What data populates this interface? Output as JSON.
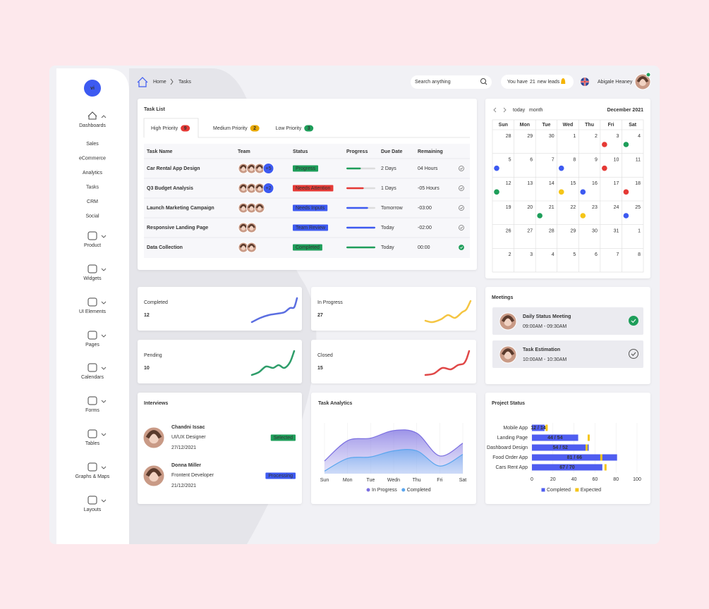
{
  "sidebar": {
    "logo": "vi",
    "menu": [
      {
        "label": "Dashboards",
        "items": [
          {
            "label": "Sales"
          },
          {
            "label": "eCommerce"
          },
          {
            "label": "Analytics"
          },
          {
            "label": "Tasks",
            "active": true
          },
          {
            "label": "CRM"
          },
          {
            "label": "Social"
          }
        ]
      },
      {
        "label": "Product"
      },
      {
        "label": "Widgets"
      },
      {
        "label": "UI Elements"
      },
      {
        "label": "Pages"
      },
      {
        "label": "Calendars"
      },
      {
        "label": "Forms"
      },
      {
        "label": "Tables"
      },
      {
        "label": "Graphs & Maps"
      },
      {
        "label": "Layouts"
      }
    ]
  },
  "header": {
    "breadcrumb": [
      "Home",
      "Tasks"
    ],
    "search_placeholder": "Search anything",
    "leads": {
      "prefix": "You have",
      "count": 21,
      "suffix": "new leads"
    },
    "user_name": "Abigale Heaney"
  },
  "task_list": {
    "title": "Task List",
    "tabs": [
      {
        "label": "High Priority",
        "count": 9,
        "color": "#e53935",
        "active": true
      },
      {
        "label": "Medium Priority",
        "count": 2,
        "color": "#e8a800"
      },
      {
        "label": "Low Priority",
        "count": 3,
        "color": "#1e9e5a"
      }
    ],
    "columns": [
      "Task Name",
      "Team",
      "Status",
      "Progress",
      "Due Date",
      "Remaining"
    ],
    "progress_scale": [
      0,
      100
    ],
    "rows": [
      {
        "name": "Car Rental App Design",
        "team": {
          "avatars": 3,
          "more": "+5"
        },
        "status": "Progress",
        "status_color": "#1e9e5a",
        "progress": 50,
        "progress_color": "#1e9e5a",
        "due": "2 Days",
        "remaining": "04 Hours",
        "overdue": true,
        "done": false
      },
      {
        "name": "Q3 Budget Analysis",
        "team": {
          "avatars": 3,
          "more": "+2"
        },
        "status": "Needs Attention",
        "status_color": "#e53935",
        "progress": 60,
        "progress_color": "#e53935",
        "due": "1 Days",
        "remaining": "-05 Hours",
        "overdue": true,
        "done": false
      },
      {
        "name": "Launch Marketing Campaign",
        "team": {
          "avatars": 3
        },
        "status": "Needs Inputs",
        "status_color": "#3d5af1",
        "progress": 75,
        "progress_color": "#3d5af1",
        "due": "Tomorrow",
        "remaining": "-03:00",
        "overdue": true,
        "done": false
      },
      {
        "name": "Responsive Landing Page",
        "team": {
          "avatars": 2
        },
        "status": "Team Review",
        "status_color": "#3d5af1",
        "progress": 100,
        "progress_color": "#3d5af1",
        "due": "Today",
        "remaining": "-02:00",
        "overdue": false,
        "done": false
      },
      {
        "name": "Data Collection",
        "team": {
          "avatars": 2
        },
        "status": "Completed",
        "status_color": "#1e9e5a",
        "progress": 100,
        "progress_color": "#1e9e5a",
        "due": "Today",
        "remaining": "00:00",
        "overdue": false,
        "done": true
      }
    ]
  },
  "calendar": {
    "nav": [
      "today",
      "month"
    ],
    "month": "December 2021",
    "weekdays": [
      "Sun",
      "Mon",
      "Tue",
      "Wed",
      "Thu",
      "Fri",
      "Sat"
    ],
    "weeks": [
      [
        {
          "day": 28,
          "other": true
        },
        {
          "day": 29,
          "other": true
        },
        {
          "day": 30,
          "other": true
        },
        {
          "day": 1
        },
        {
          "day": 2
        },
        {
          "day": 3,
          "dot": "#e53935"
        },
        {
          "day": 4,
          "dot": "#1e9e5a"
        }
      ],
      [
        {
          "day": 5,
          "dot": "#3d5af1"
        },
        {
          "day": 6
        },
        {
          "day": 7
        },
        {
          "day": 8,
          "dot": "#3d5af1"
        },
        {
          "day": 9
        },
        {
          "day": 10,
          "dot": "#e53935"
        },
        {
          "day": 11
        }
      ],
      [
        {
          "day": 12,
          "dot": "#1e9e5a"
        },
        {
          "day": 13
        },
        {
          "day": 14
        },
        {
          "day": 15,
          "dot": "#f5c518"
        },
        {
          "day": 16,
          "dot": "#3d5af1"
        },
        {
          "day": 17
        },
        {
          "day": 18,
          "dot": "#e53935"
        }
      ],
      [
        {
          "day": 19
        },
        {
          "day": 20
        },
        {
          "day": 21,
          "dot": "#1e9e5a"
        },
        {
          "day": 22
        },
        {
          "day": 23,
          "dot": "#f5c518"
        },
        {
          "day": 24
        },
        {
          "day": 25,
          "dot": "#3d5af1"
        }
      ],
      [
        {
          "day": 26
        },
        {
          "day": 27
        },
        {
          "day": 28
        },
        {
          "day": 29
        },
        {
          "day": 30
        },
        {
          "day": 31
        },
        {
          "day": 1,
          "other": true
        }
      ],
      [
        {
          "day": 2,
          "other": true
        },
        {
          "day": 3,
          "other": true
        },
        {
          "day": 4,
          "other": true
        },
        {
          "day": 5,
          "other": true
        },
        {
          "day": 6,
          "other": true
        },
        {
          "day": 7,
          "other": true
        },
        {
          "day": 8,
          "other": true
        }
      ]
    ]
  },
  "stats": [
    {
      "label": "Completed",
      "value": 12,
      "color": "#5b6ee1"
    },
    {
      "label": "In Progress",
      "value": 27,
      "color": "#f5c542"
    },
    {
      "label": "Pending",
      "value": 10,
      "color": "#2e9d6a"
    },
    {
      "label": "Closed",
      "value": 15,
      "color": "#e04848"
    }
  ],
  "meetings": {
    "title": "Meetings",
    "items": [
      {
        "title": "Daily Status Meeting",
        "time": "09:00AM - 09:30AM",
        "done": true
      },
      {
        "title": "Task Estimation",
        "time": "10:00AM - 10:30AM",
        "done": false
      }
    ]
  },
  "interviews": {
    "title": "Interviews",
    "items": [
      {
        "name": "Chandni Issac",
        "role": "UI/UX Designer",
        "date": "27/12/2021",
        "status": "Selected",
        "color": "#1e9e5a"
      },
      {
        "name": "Donna Miller",
        "role": "Frontent Developer",
        "date": "21/12/2021",
        "status": "Processing",
        "color": "#3d5af1"
      }
    ]
  },
  "chart_data": [
    {
      "type": "area",
      "title": "Task Analytics",
      "categories": [
        "Sun",
        "Mon",
        "Tue",
        "Wedn",
        "Thu",
        "Fri",
        "Sat"
      ],
      "ylim": [
        0,
        100
      ],
      "series": [
        {
          "name": "In Progress",
          "color": "#7b6fe0",
          "values": [
            25,
            65,
            70,
            85,
            80,
            35,
            60
          ]
        },
        {
          "name": "Completed",
          "color": "#5aa6ee",
          "values": [
            5,
            30,
            33,
            45,
            45,
            15,
            38
          ]
        }
      ]
    },
    {
      "type": "hbar",
      "title": "Project Status",
      "categories": [
        "Mobile App",
        "Landing Page",
        "Dashboard Design",
        "Food Order App",
        "Cars Rent App"
      ],
      "xlim": [
        0,
        100
      ],
      "xticks": [
        0,
        20,
        40,
        60,
        80,
        100
      ],
      "series": [
        {
          "name": "Completed",
          "color": "#4f5df0",
          "values": [
            12,
            44,
            54,
            81,
            67
          ],
          "value_labels": [
            "12 / 14",
            "44 / 54",
            "54 / 52",
            "81 / 66",
            "67 / 70"
          ]
        },
        {
          "name": "Expected",
          "color": "#f5c518",
          "values": [
            14,
            54,
            52,
            66,
            70
          ]
        }
      ]
    }
  ]
}
